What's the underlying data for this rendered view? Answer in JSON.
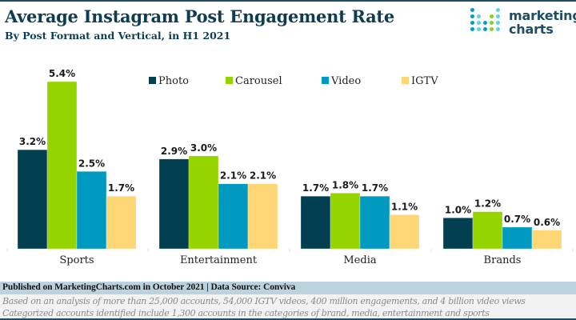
{
  "header": {
    "title": "Average Instagram Post Engagement Rate",
    "subtitle": "By Post Format and Vertical, in H1 2021"
  },
  "logo": {
    "line1": "marketing",
    "line2": "charts",
    "colors": {
      "blue": "#0a9ac6",
      "teal": "#62d2d6",
      "green": "#8dcc2e"
    }
  },
  "chart_data": {
    "type": "bar",
    "title": "Average Instagram Post Engagement Rate",
    "subtitle": "By Post Format and Vertical, in H1 2021",
    "xlabel": "",
    "ylabel": "",
    "ylim": [
      0,
      5.4
    ],
    "grid": false,
    "legend_position": "top-right",
    "value_format": "percent",
    "categories": [
      "Sports",
      "Entertainment",
      "Media",
      "Brands"
    ],
    "series": [
      {
        "name": "Photo",
        "color": "#023f51",
        "values": [
          3.2,
          2.9,
          1.7,
          1.0
        ],
        "labels": [
          "3.2%",
          "2.9%",
          "1.7%",
          "1.0%"
        ]
      },
      {
        "name": "Carousel",
        "color": "#96d400",
        "values": [
          5.4,
          3.0,
          1.8,
          1.2
        ],
        "labels": [
          "5.4%",
          "3.0%",
          "1.8%",
          "1.2%"
        ]
      },
      {
        "name": "Video",
        "color": "#0099bf",
        "values": [
          2.5,
          2.1,
          1.7,
          0.7
        ],
        "labels": [
          "2.5%",
          "2.1%",
          "1.7%",
          "0.7%"
        ]
      },
      {
        "name": "IGTV",
        "color": "#ffd676",
        "values": [
          1.7,
          2.1,
          1.1,
          0.6
        ],
        "labels": [
          "1.7%",
          "2.1%",
          "1.1%",
          "0.6%"
        ]
      }
    ]
  },
  "footer": {
    "published": "Published on MarketingCharts.com in October 2021 | Data Source: Conviva",
    "notes": [
      "Based on an analysis of more than 25,000 accounts, 54,000 IGTV videos, 400 million engagements, and 4 billion video views",
      "Categorized accounts identified include 1,300 accounts in the categories of brand, media, entertainment and sports"
    ]
  }
}
